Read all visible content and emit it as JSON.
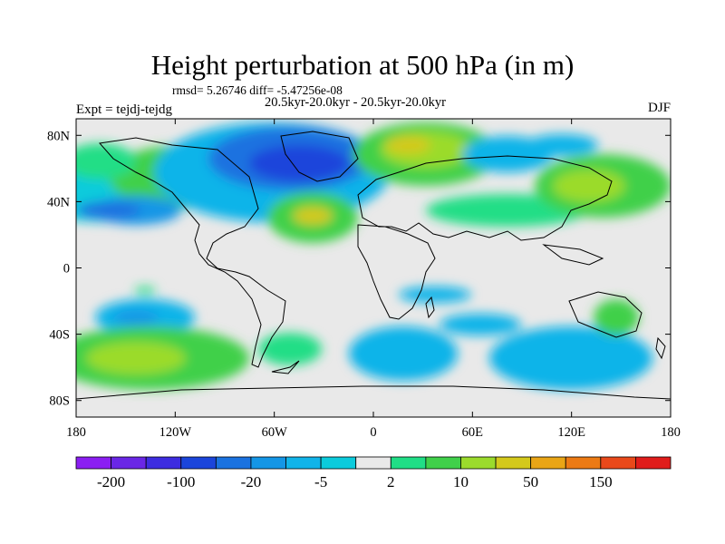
{
  "map": {
    "title": "Height perturbation at 500 hPa (in m)",
    "stats": "rmsd= 5.26746 diff= -5.47256e-08",
    "periods": "20.5kyr-20.0kyr - 20.5kyr-20.0kyr",
    "experiment": "Expt = tejdj-tejdg",
    "season": "DJF",
    "projection": "cylindrical equidistant, global",
    "lon_range": [
      -180,
      180
    ],
    "lat_range": [
      -90,
      90
    ],
    "lat_tick_labels": [
      "80N",
      "40N",
      "0",
      "40S",
      "80S"
    ],
    "lon_tick_labels": [
      "180",
      "120W",
      "60W",
      "0",
      "60E",
      "120E",
      "180"
    ]
  },
  "colorbar": {
    "labels": [
      "-200",
      "-100",
      "-20",
      "-5",
      "2",
      "10",
      "50",
      "150"
    ],
    "colors": [
      "#8b1ef2",
      "#6a26e6",
      "#3d2ce0",
      "#1b45db",
      "#1a72e0",
      "#1496e6",
      "#11b4e9",
      "#0bcbdc",
      "#e9e9e9",
      "#20de86",
      "#40d04a",
      "#9bdb2c",
      "#d4c91c",
      "#e9a516",
      "#ec7a14",
      "#e9491a",
      "#e01d1b"
    ]
  },
  "icons": {
    "coastlines": "world-coastline-outline"
  }
}
